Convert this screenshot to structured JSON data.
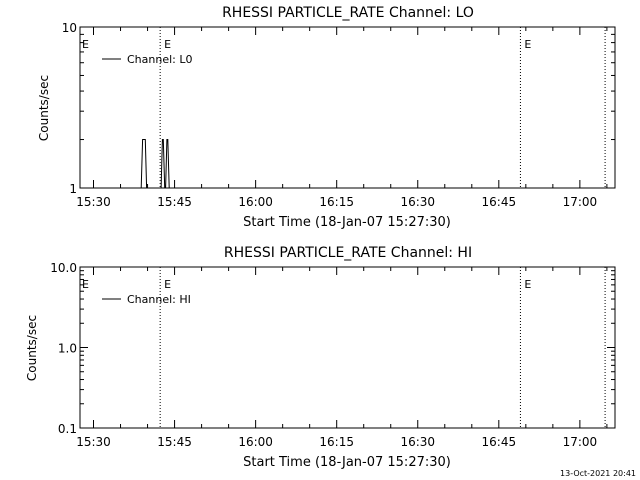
{
  "chart_data": [
    {
      "type": "line",
      "title": "RHESSI PARTICLE_RATE Channel: LO",
      "xlabel": "Start Time (18-Jan-07 15:27:30)",
      "ylabel": "Counts/sec",
      "yscale": "log",
      "ylim": [
        1,
        10
      ],
      "yticks": [
        "1",
        "10"
      ],
      "xlim": [
        "15:27:30",
        "17:06:30"
      ],
      "xticks": [
        "15:30",
        "15:45",
        "16:00",
        "16:15",
        "16:30",
        "16:45",
        "17:00"
      ],
      "grid": false,
      "legend": "top-left",
      "series": [
        {
          "name": "Channel: L0",
          "x": [
            "15:38:50",
            "15:39:05",
            "15:39:35",
            "15:39:50",
            "15:42:30",
            "15:42:45",
            "15:42:55",
            "15:43:10",
            "15:43:20",
            "15:43:35",
            "15:43:45",
            "15:44:00"
          ],
          "y": [
            1,
            2,
            2,
            1,
            1,
            2,
            2,
            1,
            1,
            2,
            2,
            1
          ]
        }
      ],
      "markers": [
        {
          "time": "15:42:20",
          "label": "E"
        },
        {
          "time": "16:49:00",
          "label": "E"
        },
        {
          "time": "17:04:40",
          "label": ""
        }
      ]
    },
    {
      "type": "line",
      "title": "RHESSI PARTICLE_RATE Channel: HI",
      "xlabel": "Start Time (18-Jan-07 15:27:30)",
      "ylabel": "Counts/sec",
      "yscale": "log",
      "ylim": [
        0.1,
        10
      ],
      "yticks": [
        "0.1",
        "1.0",
        "10.0"
      ],
      "xlim": [
        "15:27:30",
        "17:06:30"
      ],
      "xticks": [
        "15:30",
        "15:45",
        "16:00",
        "16:15",
        "16:30",
        "16:45",
        "17:00"
      ],
      "grid": false,
      "legend": "top-left",
      "series": [
        {
          "name": "Channel: HI",
          "x": [],
          "y": []
        }
      ],
      "markers": [
        {
          "time": "15:42:20",
          "label": "E"
        },
        {
          "time": "16:49:00",
          "label": "E"
        },
        {
          "time": "17:04:40",
          "label": ""
        }
      ]
    }
  ],
  "footer": {
    "timestamp": "13-Oct-2021 20:41"
  }
}
